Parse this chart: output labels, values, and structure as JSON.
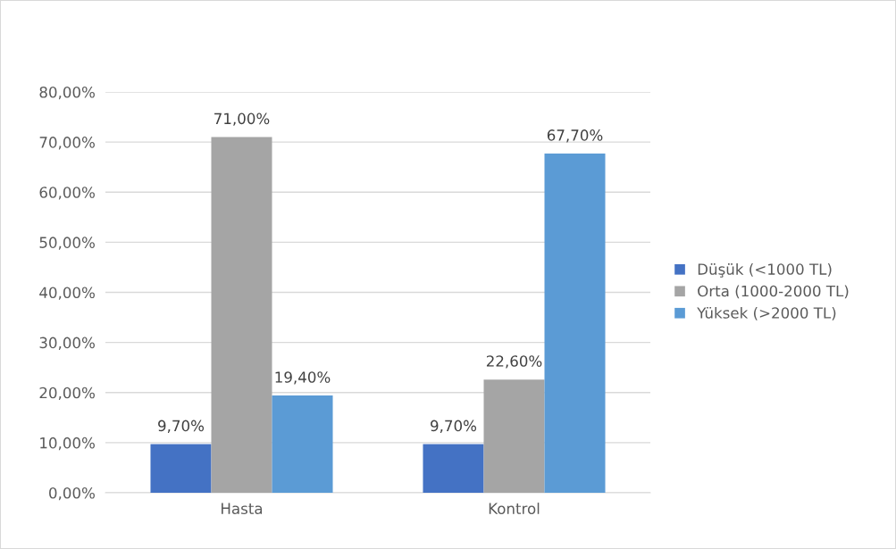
{
  "chart_data": {
    "type": "bar",
    "categories": [
      "Hasta",
      "Kontrol"
    ],
    "series": [
      {
        "name": "Düşük (<1000 TL)",
        "color": "#4472c4",
        "values": [
          9.7,
          9.7
        ],
        "value_labels": [
          "9,70%",
          "9,70%"
        ]
      },
      {
        "name": "Orta (1000-2000 TL)",
        "color": "#a5a5a5",
        "values": [
          71.0,
          22.6
        ],
        "value_labels": [
          "71,00%",
          "22,60%"
        ]
      },
      {
        "name": "Yüksek (>2000 TL)",
        "color": "#5b9bd5",
        "values": [
          19.4,
          67.7
        ],
        "value_labels": [
          "19,40%",
          "67,70%"
        ]
      }
    ],
    "ylim": [
      0,
      80
    ],
    "yticks": [
      {
        "value": 0,
        "label": "0,00%"
      },
      {
        "value": 10,
        "label": "10,00%"
      },
      {
        "value": 20,
        "label": "20,00%"
      },
      {
        "value": 30,
        "label": "30,00%"
      },
      {
        "value": 40,
        "label": "40,00%"
      },
      {
        "value": 50,
        "label": "50,00%"
      },
      {
        "value": 60,
        "label": "60,00%"
      },
      {
        "value": 70,
        "label": "70,00%"
      },
      {
        "value": 80,
        "label": "80,00%"
      }
    ],
    "grid": "y",
    "legend": "right"
  }
}
